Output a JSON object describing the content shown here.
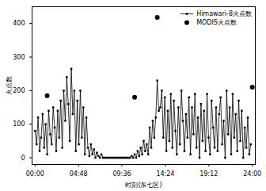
{
  "chart_data": {
    "type": "line",
    "x_label": "时刻(东七区)",
    "y_label": "火点数",
    "xlim": [
      -20,
      1460
    ],
    "xticks": [
      {
        "value": 0,
        "label": "00:00"
      },
      {
        "value": 288,
        "label": "04:48"
      },
      {
        "value": 576,
        "label": "09:36"
      },
      {
        "value": 864,
        "label": "14:24"
      },
      {
        "value": 1152,
        "label": "19:12"
      },
      {
        "value": 1440,
        "label": "24:00"
      }
    ],
    "ylim": [
      -20,
      450
    ],
    "yticks": [
      0,
      100,
      200,
      300,
      400
    ],
    "legend": "top-right",
    "series": [
      {
        "name": "Himawari-8火点数",
        "type": "line",
        "marker": "square",
        "color": "#000000",
        "x": [
          0,
          10,
          20,
          30,
          40,
          50,
          60,
          70,
          80,
          90,
          100,
          110,
          120,
          130,
          140,
          150,
          160,
          170,
          180,
          190,
          200,
          210,
          220,
          230,
          240,
          250,
          260,
          270,
          280,
          290,
          300,
          310,
          320,
          330,
          340,
          350,
          360,
          370,
          380,
          390,
          400,
          410,
          420,
          430,
          440,
          450,
          460,
          470,
          480,
          490,
          500,
          510,
          520,
          530,
          540,
          550,
          560,
          570,
          580,
          590,
          600,
          610,
          620,
          630,
          640,
          650,
          660,
          670,
          680,
          690,
          700,
          710,
          720,
          730,
          740,
          750,
          760,
          770,
          780,
          790,
          800,
          810,
          820,
          830,
          840,
          850,
          860,
          870,
          880,
          890,
          900,
          910,
          920,
          930,
          940,
          950,
          960,
          970,
          980,
          990,
          1000,
          1010,
          1020,
          1030,
          1040,
          1050,
          1060,
          1070,
          1080,
          1090,
          1100,
          1110,
          1120,
          1130,
          1140,
          1150,
          1160,
          1170,
          1180,
          1190,
          1200,
          1210,
          1220,
          1230,
          1240,
          1250,
          1260,
          1270,
          1280,
          1290,
          1300,
          1310,
          1320,
          1330,
          1340,
          1350,
          1360,
          1370,
          1380,
          1390,
          1400,
          1410,
          1420,
          1430
        ],
        "values": [
          80,
          40,
          120,
          20,
          60,
          130,
          30,
          100,
          10,
          140,
          70,
          40,
          150,
          90,
          20,
          140,
          60,
          170,
          30,
          200,
          110,
          240,
          160,
          50,
          265,
          130,
          200,
          20,
          170,
          40,
          200,
          60,
          150,
          10,
          120,
          30,
          5,
          40,
          10,
          25,
          0,
          15,
          5,
          0,
          10,
          0,
          0,
          0,
          0,
          0,
          0,
          0,
          0,
          0,
          0,
          0,
          0,
          0,
          0,
          0,
          0,
          0,
          0,
          0,
          5,
          0,
          10,
          0,
          20,
          5,
          30,
          10,
          50,
          20,
          40,
          10,
          90,
          30,
          110,
          60,
          120,
          230,
          140,
          150,
          200,
          60,
          180,
          20,
          140,
          50,
          190,
          30,
          170,
          80,
          10,
          150,
          40,
          200,
          110,
          20,
          130,
          60,
          180,
          10,
          150,
          70,
          190,
          30,
          120,
          0,
          160,
          50,
          140,
          20,
          190,
          60,
          10,
          170,
          90,
          30,
          150,
          20,
          130,
          180,
          40,
          110,
          0,
          200,
          70,
          150,
          10,
          190,
          60,
          130,
          20,
          170,
          50,
          140,
          0,
          90,
          30,
          120,
          10,
          40
        ]
      },
      {
        "name": "MODIS火点数",
        "type": "scatter",
        "marker": "circle",
        "color": "#000000",
        "x": [
          80,
          660,
          810,
          1440
        ],
        "values": [
          185,
          180,
          418,
          210
        ]
      }
    ]
  }
}
